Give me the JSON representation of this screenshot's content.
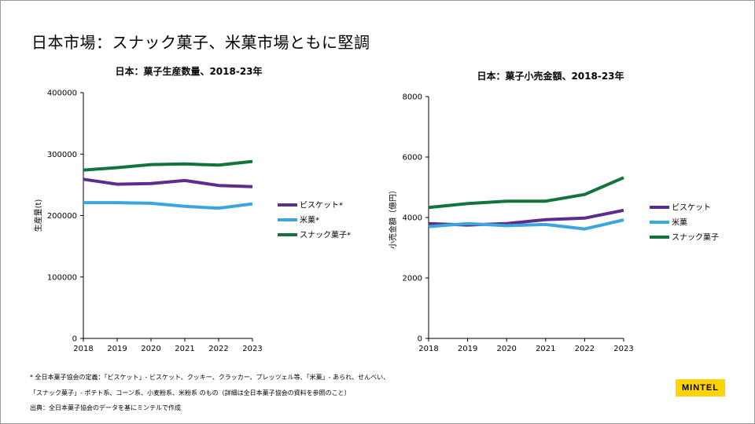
{
  "slide": {
    "title": "日本市場：スナック菓子、米菓市場ともに堅調",
    "footnote_1": "* 全日本菓子協会の定義：「ビスケット」- ビスケット、クッキー、クラッカー、プレッツェル等、「米菓」- あられ、せんべい、",
    "footnote_2": "「スナック菓子」- ポテト系、コーン系、小麦粉系、米粉系 のもの（詳細は全日本菓子協会の資料を参照のこと）",
    "source": "出典：全日本菓子協会のデータを基にミンテルで作成",
    "logo": "MINTEL"
  },
  "chart_data": [
    {
      "type": "line",
      "title": "日本：菓子生産数量、2018-23年",
      "xlabel": "",
      "ylabel": "生産量(t)",
      "x": [
        "2018",
        "2019",
        "2020",
        "2021",
        "2022",
        "2023"
      ],
      "ylim": [
        0,
        400000
      ],
      "yticks": [
        "0",
        "100000",
        "200000",
        "300000",
        "400000"
      ],
      "legend_position": "right",
      "series": [
        {
          "name": "ビスケット*",
          "color": "#5b2d8e",
          "values": [
            259000,
            251000,
            252000,
            257000,
            249000,
            247000
          ]
        },
        {
          "name": "米菓*",
          "color": "#3aa6dd",
          "values": [
            221000,
            221000,
            220000,
            215000,
            212000,
            219000
          ]
        },
        {
          "name": "スナック菓子*",
          "color": "#12743b",
          "values": [
            274000,
            278000,
            283000,
            284000,
            282000,
            288000
          ]
        }
      ]
    },
    {
      "type": "line",
      "title": "日本：菓子小売金額、2018-23年",
      "xlabel": "",
      "ylabel": "小売金額（億円）",
      "x": [
        "2018",
        "2019",
        "2020",
        "2021",
        "2022",
        "2023"
      ],
      "ylim": [
        0,
        8000
      ],
      "yticks": [
        "0",
        "2000",
        "4000",
        "6000",
        "8000"
      ],
      "legend_position": "right",
      "series": [
        {
          "name": "ビスケット",
          "color": "#5b2d8e",
          "values": [
            3800,
            3750,
            3800,
            3930,
            3980,
            4240
          ]
        },
        {
          "name": "米菓",
          "color": "#3aa6dd",
          "values": [
            3700,
            3800,
            3730,
            3770,
            3620,
            3920
          ]
        },
        {
          "name": "スナック菓子",
          "color": "#12743b",
          "values": [
            4330,
            4460,
            4540,
            4540,
            4760,
            5320
          ]
        }
      ]
    }
  ]
}
